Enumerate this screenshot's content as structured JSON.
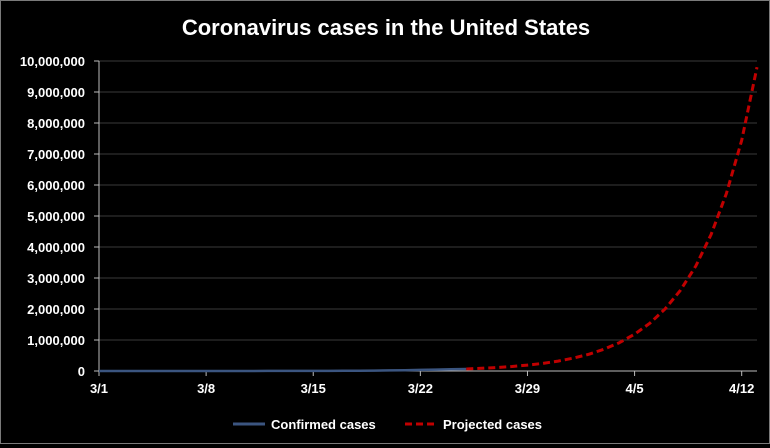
{
  "chart_data": {
    "type": "line",
    "title": "Coronavirus cases in the United States",
    "xlabel": "",
    "ylabel": "",
    "x_tick_labels": [
      "3/1",
      "3/8",
      "3/15",
      "3/22",
      "3/29",
      "4/5",
      "4/12"
    ],
    "y_tick_labels": [
      "0",
      "1,000,000",
      "2,000,000",
      "3,000,000",
      "4,000,000",
      "5,000,000",
      "6,000,000",
      "7,000,000",
      "8,000,000",
      "9,000,000",
      "10,000,000"
    ],
    "xlim": [
      "3/1",
      "4/13"
    ],
    "ylim": [
      0,
      10000000
    ],
    "grid": "horizontal",
    "legend_position": "bottom",
    "series": [
      {
        "name": "Confirmed cases",
        "style": "solid",
        "color": "#3b5580",
        "x": [
          "3/1",
          "3/2",
          "3/3",
          "3/4",
          "3/5",
          "3/6",
          "3/7",
          "3/8",
          "3/9",
          "3/10",
          "3/11",
          "3/12",
          "3/13",
          "3/14",
          "3/15",
          "3/16",
          "3/17",
          "3/18",
          "3/19",
          "3/20",
          "3/21",
          "3/22",
          "3/23",
          "3/24",
          "3/25"
        ],
        "values": [
          70,
          100,
          120,
          160,
          230,
          320,
          440,
          540,
          700,
          960,
          1300,
          1700,
          2200,
          2900,
          3500,
          4600,
          6400,
          9400,
          14000,
          19500,
          26000,
          34000,
          44000,
          54000,
          66000
        ]
      },
      {
        "name": "Projected cases",
        "style": "dashed",
        "color": "#c00000",
        "x": [
          "3/25",
          "3/26",
          "3/27",
          "3/28",
          "3/29",
          "3/30",
          "3/31",
          "4/1",
          "4/2",
          "4/3",
          "4/4",
          "4/5",
          "4/6",
          "4/7",
          "4/8",
          "4/9",
          "4/10",
          "4/11",
          "4/12",
          "4/13"
        ],
        "values": [
          66000,
          86000,
          112000,
          145000,
          189000,
          245000,
          319000,
          415000,
          540000,
          702000,
          912000,
          1186000,
          1542000,
          2005000,
          2606000,
          3388000,
          4404000,
          5725000,
          7443000,
          9800000
        ]
      }
    ]
  }
}
